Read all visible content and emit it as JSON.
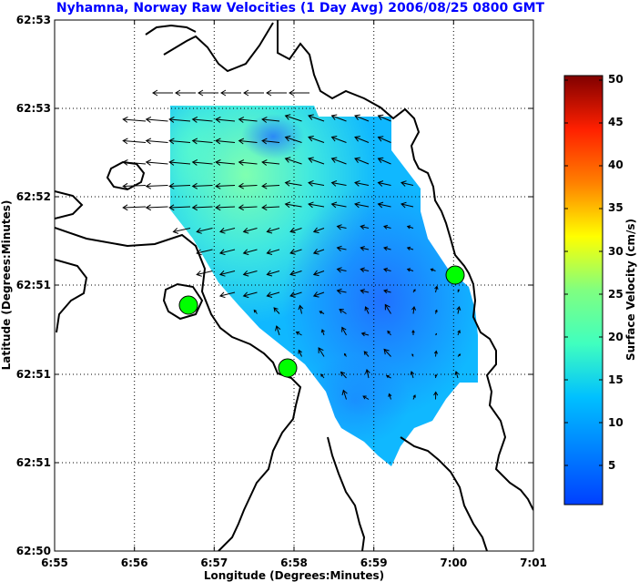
{
  "chart_data": {
    "type": "heatmap",
    "title": "Nyhamna, Norway Raw Velocities (1 Day Avg) 2006/08/25 0800 GMT",
    "xlabel": "Longitude (Degrees:Minutes)",
    "ylabel": "Latitude (Degrees:Minutes)",
    "x_ticks": [
      "6:55",
      "6:56",
      "6:57",
      "6:58",
      "6:59",
      "7:00",
      "7:01"
    ],
    "y_ticks": [
      "62:50",
      "62:51",
      "62:51",
      "62:51",
      "62:52",
      "62:53",
      "62:53"
    ],
    "xlim": [
      55,
      61
    ],
    "grid": true,
    "colorbar": {
      "label": "Surface Velocity (cm/s)",
      "range": [
        0,
        50
      ],
      "ticks": [
        "5",
        "10",
        "15",
        "20",
        "25",
        "30",
        "35",
        "40",
        "45",
        "50"
      ],
      "colormap": "jet"
    },
    "stations": [
      {
        "lon_min": 56.7,
        "color": "#00ff00"
      },
      {
        "lon_min": 57.9,
        "color": "#00ff00"
      },
      {
        "lon_min": 60.0,
        "color": "#00ff00"
      }
    ]
  },
  "colors": {
    "title": "#0000ff",
    "coast": "#000000",
    "station": "#00ff00"
  }
}
